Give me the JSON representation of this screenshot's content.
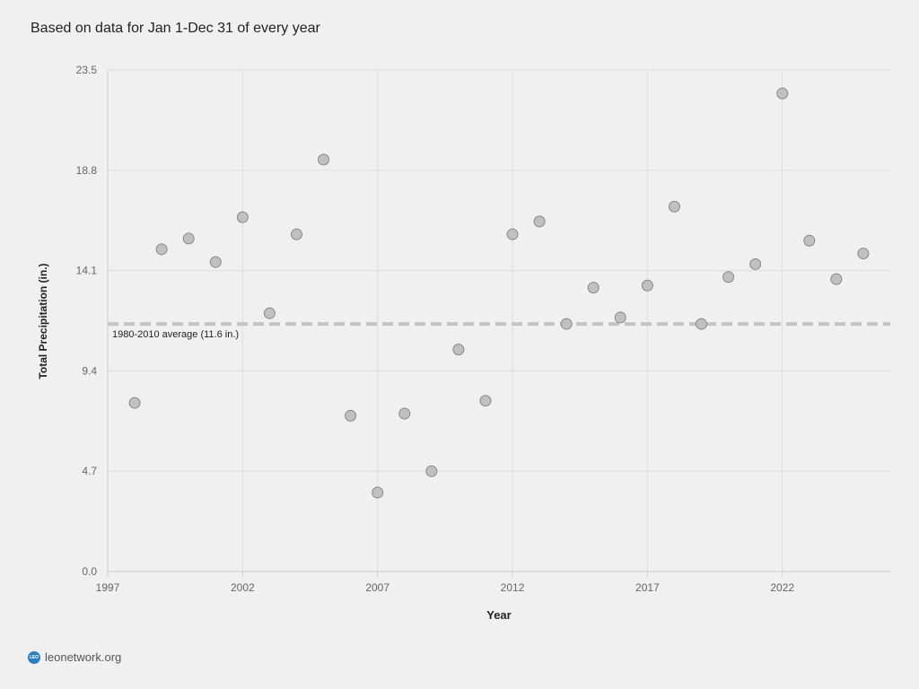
{
  "subtitle": "Based on data for Jan 1-Dec 31 of every year",
  "footer": {
    "logo_text": "LEO",
    "site": "leonetwork.org"
  },
  "colors": {
    "background": "#f0f0f0",
    "grid": "#dddddd",
    "point_fill": "#c0c0c0",
    "point_stroke": "#888888",
    "average_line": "#c4c4c4",
    "logo": "#2a7fc0"
  },
  "chart_data": {
    "type": "scatter",
    "title": "",
    "xlabel": "Year",
    "ylabel": "Total Precipitation (in.)",
    "xlim": [
      1997,
      2026
    ],
    "ylim": [
      0,
      23.5
    ],
    "x_ticks": [
      1997,
      2002,
      2007,
      2012,
      2017,
      2022
    ],
    "y_ticks": [
      0.0,
      4.7,
      9.4,
      14.1,
      18.8,
      23.5
    ],
    "y_tick_labels": [
      "0.0",
      "4.7",
      "9.4",
      "14.1",
      "18.8",
      "23.5"
    ],
    "grid": true,
    "reference_line": {
      "value": 11.6,
      "label": "1980-2010 average (11.6 in.)"
    },
    "series": [
      {
        "x": [
          1998,
          1999,
          2000,
          2001,
          2002,
          2003,
          2004,
          2005,
          2006,
          2007,
          2008,
          2009,
          2010,
          2011,
          2012,
          2013,
          2014,
          2015,
          2016,
          2017,
          2018,
          2019,
          2020,
          2021,
          2022,
          2023,
          2024,
          2025
        ],
        "y": [
          7.9,
          15.1,
          15.6,
          14.5,
          16.6,
          12.1,
          15.8,
          19.3,
          7.3,
          3.7,
          7.4,
          4.7,
          10.4,
          8.0,
          15.8,
          16.4,
          11.6,
          13.3,
          11.9,
          13.4,
          17.1,
          11.6,
          13.8,
          14.4,
          22.4,
          15.5,
          13.7,
          14.9
        ]
      }
    ]
  }
}
